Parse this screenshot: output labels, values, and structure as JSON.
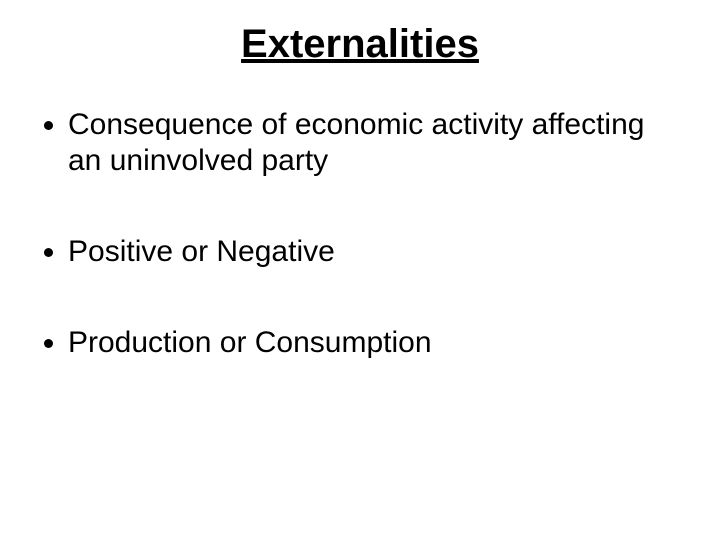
{
  "slide": {
    "title": "Externalities",
    "bullets": [
      "Consequence of economic activity affecting an uninvolved party",
      "Positive or Negative",
      "Production or Consumption"
    ],
    "style": {
      "background_color": "#ffffff",
      "text_color": "#000000",
      "title_fontsize": 40,
      "title_fontweight": "bold",
      "title_underline": true,
      "title_align": "center",
      "bullet_fontsize": 30,
      "bullet_spacing": 55,
      "font_family": "Arial"
    }
  }
}
